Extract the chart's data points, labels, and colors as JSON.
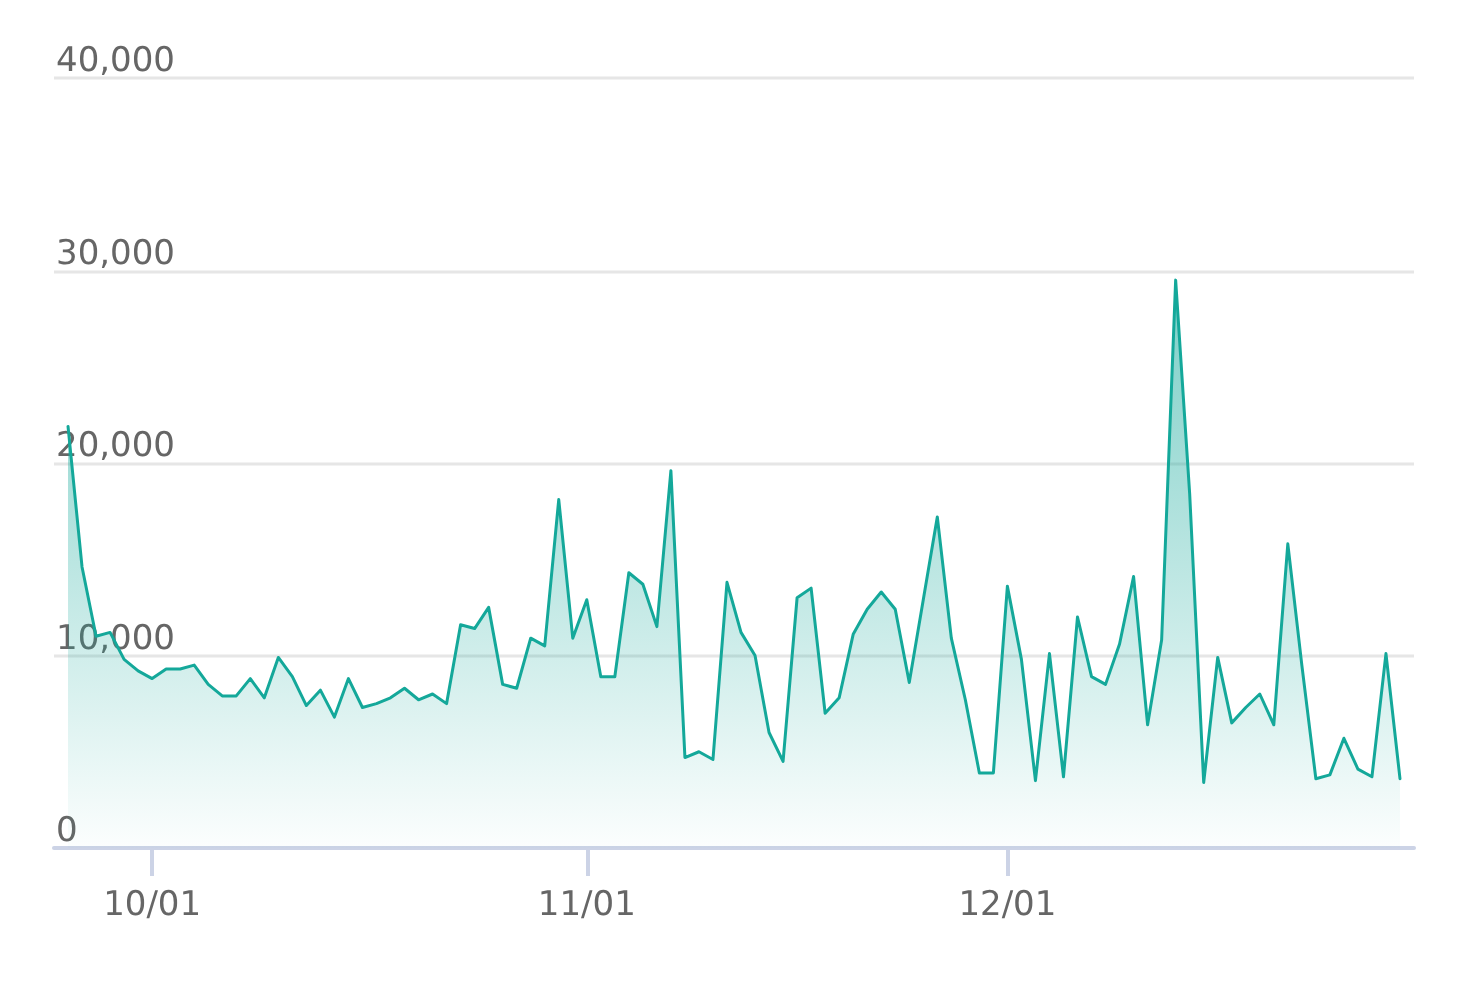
{
  "chart_data": {
    "type": "area",
    "x": [
      "--09-25",
      "--09-26",
      "--09-27",
      "--09-28",
      "--09-29",
      "--09-30",
      "--10-01",
      "--10-02",
      "--10-03",
      "--10-04",
      "--10-05",
      "--10-06",
      "--10-07",
      "--10-08",
      "--10-09",
      "--10-10",
      "--10-11",
      "--10-12",
      "--10-13",
      "--10-14",
      "--10-15",
      "--10-16",
      "--10-17",
      "--10-18",
      "--10-19",
      "--10-20",
      "--10-21",
      "--10-22",
      "--10-23",
      "--10-24",
      "--10-25",
      "--10-26",
      "--10-27",
      "--10-28",
      "--10-29",
      "--10-30",
      "--10-31",
      "--11-01",
      "--11-02",
      "--11-03",
      "--11-04",
      "--11-05",
      "--11-06",
      "--11-07",
      "--11-08",
      "--11-09",
      "--11-10",
      "--11-11",
      "--11-12",
      "--11-13",
      "--11-14",
      "--11-15",
      "--11-16",
      "--11-17",
      "--11-18",
      "--11-19",
      "--11-20",
      "--11-21",
      "--11-22",
      "--11-23",
      "--11-24",
      "--11-25",
      "--11-26",
      "--11-27",
      "--11-28",
      "--11-29",
      "--11-30",
      "--12-01",
      "--12-02",
      "--12-03",
      "--12-04",
      "--12-05",
      "--12-06",
      "--12-07",
      "--12-08",
      "--12-09",
      "--12-10",
      "--12-11",
      "--12-12",
      "--12-13",
      "--12-14",
      "--12-15",
      "--12-16",
      "--12-17",
      "--12-18",
      "--12-19",
      "--12-20",
      "--12-21",
      "--12-22",
      "--12-23",
      "--12-24",
      "--12-25",
      "--12-26",
      "--12-27",
      "--12-28",
      "--12-29"
    ],
    "series": [
      {
        "color": "#14a89a",
        "values": [
          21900,
          14600,
          11000,
          11200,
          9800,
          9200,
          8800,
          9300,
          9300,
          9500,
          8500,
          7900,
          7900,
          8800,
          7800,
          9900,
          8900,
          7400,
          8200,
          6800,
          8800,
          7300,
          7500,
          7800,
          8300,
          7700,
          8000,
          7500,
          11600,
          11400,
          12500,
          8500,
          8300,
          10900,
          10500,
          18100,
          10900,
          12900,
          8900,
          8900,
          14300,
          13700,
          11500,
          19600,
          4700,
          5000,
          4600,
          13800,
          11200,
          10000,
          6000,
          4500,
          13000,
          13500,
          7000,
          7800,
          11100,
          12400,
          13300,
          12400,
          8600,
          12900,
          17200,
          10900,
          7700,
          3900,
          3900,
          13600,
          9800,
          3500,
          10100,
          3700,
          12000,
          8900,
          8500,
          10600,
          14100,
          6400,
          10800,
          29500,
          18400,
          3400,
          9900,
          6500,
          7300,
          8000,
          6400,
          15800,
          9500,
          3600,
          3800,
          5700,
          4100,
          3700,
          10100,
          3600
        ]
      }
    ],
    "xlim": [
      "--09-24",
      "--12-30"
    ],
    "xticks": [
      {
        "value": "--10-01",
        "label": "10/01"
      },
      {
        "value": "--11-01",
        "label": "11/01"
      },
      {
        "value": "--12-01",
        "label": "12/01"
      }
    ],
    "ylim": [
      0,
      40000
    ],
    "yticks": [
      0,
      {
        "value": 10000,
        "label": "10,000"
      },
      {
        "value": 20000,
        "label": "20,000"
      },
      {
        "value": 30000,
        "label": "30,000"
      },
      {
        "value": 40000,
        "label": "40,000"
      }
    ],
    "grid": "y",
    "marker": "none",
    "line_style": "solid"
  }
}
